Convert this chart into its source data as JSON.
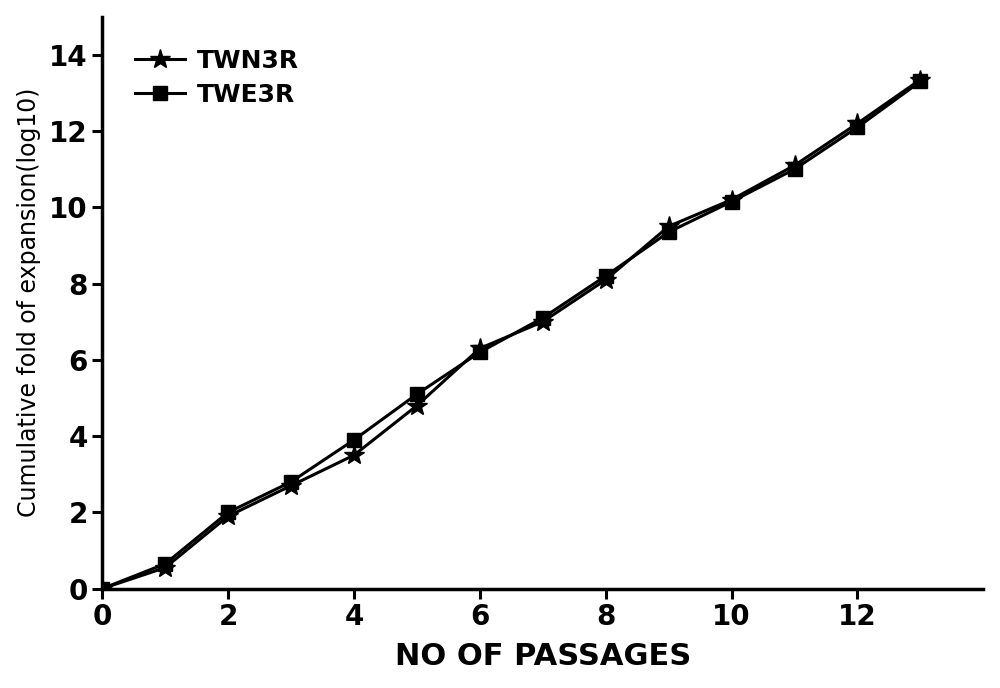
{
  "TWN3R_x": [
    0,
    1,
    2,
    3,
    4,
    5,
    6,
    7,
    8,
    9,
    10,
    11,
    12,
    13
  ],
  "TWN3R_y": [
    0,
    0.55,
    1.9,
    2.7,
    3.5,
    4.8,
    6.3,
    7.0,
    8.1,
    9.5,
    10.2,
    11.1,
    12.2,
    13.35
  ],
  "TWE3R_x": [
    0,
    1,
    2,
    3,
    4,
    5,
    6,
    7,
    8,
    9,
    10,
    11,
    12,
    13
  ],
  "TWE3R_y": [
    0,
    0.65,
    2.0,
    2.8,
    3.9,
    5.1,
    6.2,
    7.1,
    8.2,
    9.35,
    10.15,
    11.0,
    12.1,
    13.3
  ],
  "xlabel": "NO OF PASSAGES",
  "ylabel": "Cumulative fold of expansion(log10)",
  "xlim": [
    0,
    14
  ],
  "ylim": [
    0,
    15
  ],
  "xticks": [
    0,
    2,
    4,
    6,
    8,
    10,
    12
  ],
  "yticks": [
    0,
    2,
    4,
    6,
    8,
    10,
    12,
    14
  ],
  "line_color": "#000000",
  "line_width": 2.2,
  "marker_size_star": 15,
  "marker_size_square": 10,
  "legend_TWN3R": "TWN3R",
  "legend_TWE3R": "TWE3R",
  "background_color": "#ffffff",
  "axis_linewidth": 2.5,
  "font_size_ticks": 20,
  "font_size_xlabel": 22,
  "font_size_ylabel": 17,
  "font_size_legend": 18
}
